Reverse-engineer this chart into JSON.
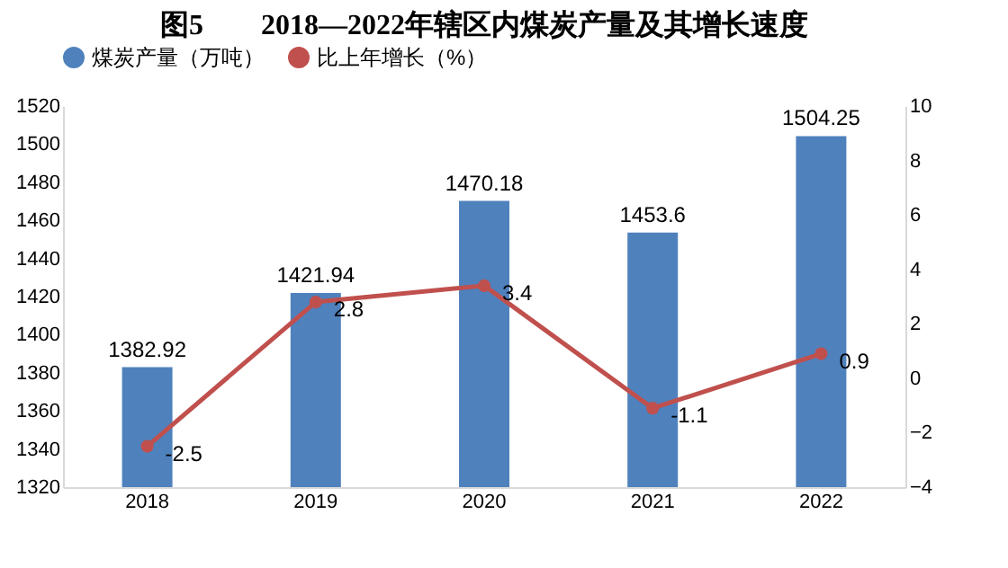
{
  "chart_data": {
    "type": "bar",
    "title": "图5　　2018—2022年辖区内煤炭产量及其增长速度",
    "categories": [
      "2018",
      "2019",
      "2020",
      "2021",
      "2022"
    ],
    "series": [
      {
        "name": "煤炭产量（万吨）",
        "type": "bar",
        "color": "#4f81bd",
        "values": [
          1382.92,
          1421.94,
          1470.18,
          1453.6,
          1504.25
        ]
      },
      {
        "name": "比上年增长（%）",
        "type": "line",
        "axis": "y2",
        "color": "#c0504d",
        "values": [
          -2.5,
          2.8,
          3.4,
          -1.1,
          0.9
        ]
      }
    ],
    "ylim": [
      1320,
      1520
    ],
    "yticks": [
      1320,
      1340,
      1360,
      1380,
      1400,
      1420,
      1440,
      1460,
      1480,
      1500,
      1520
    ],
    "y2lim": [
      -4,
      10
    ],
    "y2ticks": [
      -4,
      -2,
      0,
      2,
      4,
      6,
      8,
      10
    ],
    "data_labels": true,
    "marker": "circle",
    "legend": "top",
    "grid": false
  }
}
